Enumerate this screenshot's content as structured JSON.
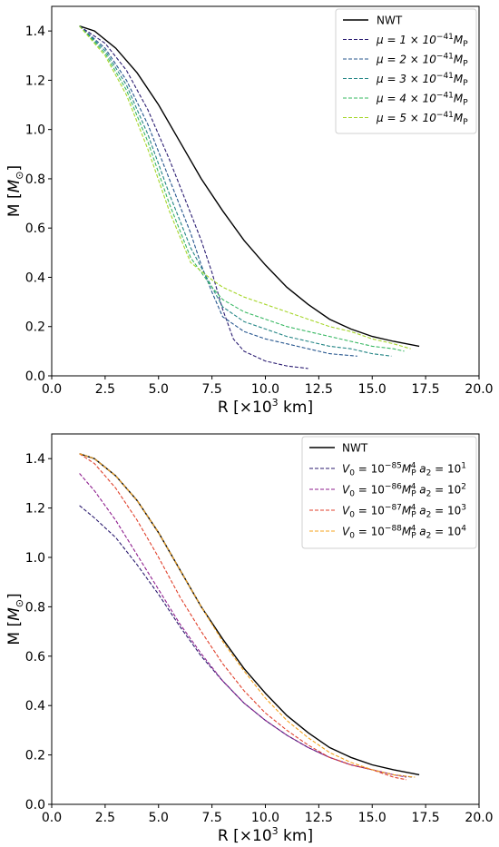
{
  "chart_data": [
    {
      "type": "line",
      "xlabel": "R [×10³ km]",
      "ylabel": "M [M☉]",
      "xlim": [
        0,
        20
      ],
      "ylim": [
        0,
        1.5
      ],
      "xticks": [
        "0.0",
        "2.5",
        "5.0",
        "7.5",
        "10.0",
        "12.5",
        "15.0",
        "17.5",
        "20.0"
      ],
      "yticks": [
        "0.0",
        "0.2",
        "0.4",
        "0.6",
        "0.8",
        "1.0",
        "1.2",
        "1.4"
      ],
      "legend_position": "top-right",
      "grid": false,
      "series": [
        {
          "name": "NWT",
          "style": "solid",
          "color": "#000000",
          "x": [
            1.3,
            2.0,
            3.0,
            4.0,
            5.0,
            6.0,
            7.0,
            8.0,
            9.0,
            10.0,
            11.0,
            12.0,
            13.0,
            14.0,
            15.0,
            16.0,
            17.2
          ],
          "y": [
            1.42,
            1.4,
            1.33,
            1.23,
            1.1,
            0.95,
            0.8,
            0.67,
            0.55,
            0.45,
            0.36,
            0.29,
            0.23,
            0.19,
            0.16,
            0.14,
            0.12
          ]
        },
        {
          "name_parts": [
            "μ = 1 × 10",
            "−41",
            "M",
            "P"
          ],
          "style": "dashed",
          "color": "#2b1d72",
          "x": [
            1.3,
            2.5,
            3.5,
            4.5,
            5.5,
            6.5,
            7.0,
            7.5,
            8.0,
            8.5,
            9.0,
            10.0,
            11.0,
            12.0
          ],
          "y": [
            1.42,
            1.35,
            1.24,
            1.08,
            0.88,
            0.66,
            0.55,
            0.42,
            0.27,
            0.15,
            0.1,
            0.06,
            0.04,
            0.03
          ]
        },
        {
          "name_parts": [
            "μ = 2 × 10",
            "−41",
            "M",
            "P"
          ],
          "style": "dashed",
          "color": "#25558e",
          "x": [
            1.3,
            2.5,
            3.5,
            4.5,
            5.5,
            6.5,
            7.0,
            7.5,
            8.0,
            9.0,
            10.0,
            11.0,
            12.0,
            13.0,
            14.3
          ],
          "y": [
            1.42,
            1.33,
            1.2,
            1.02,
            0.8,
            0.58,
            0.45,
            0.34,
            0.24,
            0.18,
            0.15,
            0.13,
            0.11,
            0.09,
            0.08
          ]
        },
        {
          "name_parts": [
            "μ = 3 × 10",
            "−41",
            "M",
            "P"
          ],
          "style": "dashed",
          "color": "#238585",
          "x": [
            1.3,
            2.5,
            3.5,
            4.5,
            5.5,
            6.5,
            7.5,
            8.0,
            9.0,
            10.0,
            11.0,
            12.0,
            13.0,
            14.0,
            15.0,
            15.9
          ],
          "y": [
            1.42,
            1.32,
            1.18,
            0.98,
            0.74,
            0.52,
            0.36,
            0.28,
            0.22,
            0.19,
            0.16,
            0.14,
            0.12,
            0.11,
            0.09,
            0.08
          ]
        },
        {
          "name_parts": [
            "μ = 4 × 10",
            "−41",
            "M",
            "P"
          ],
          "style": "dashed",
          "color": "#37b862",
          "x": [
            1.3,
            2.5,
            3.5,
            4.5,
            5.5,
            6.5,
            7.5,
            8.0,
            9.0,
            10.0,
            11.0,
            12.0,
            13.0,
            14.0,
            15.0,
            16.0,
            16.5
          ],
          "y": [
            1.42,
            1.31,
            1.16,
            0.95,
            0.7,
            0.48,
            0.36,
            0.31,
            0.26,
            0.23,
            0.2,
            0.18,
            0.16,
            0.14,
            0.12,
            0.11,
            0.1
          ]
        },
        {
          "name_parts": [
            "μ = 5 × 10",
            "−41",
            "M",
            "P"
          ],
          "style": "dashed",
          "color": "#a6d62a",
          "x": [
            1.3,
            2.5,
            3.5,
            4.5,
            5.5,
            6.5,
            7.5,
            8.0,
            9.0,
            10.0,
            11.0,
            12.0,
            13.0,
            14.0,
            15.0,
            16.0,
            16.8
          ],
          "y": [
            1.42,
            1.3,
            1.14,
            0.92,
            0.67,
            0.46,
            0.39,
            0.36,
            0.32,
            0.29,
            0.26,
            0.23,
            0.2,
            0.18,
            0.15,
            0.13,
            0.11
          ]
        }
      ]
    },
    {
      "type": "line",
      "xlabel": "R [×10³ km]",
      "ylabel": "M [M☉]",
      "xlim": [
        0,
        20
      ],
      "ylim": [
        0,
        1.5
      ],
      "xticks": [
        "0.0",
        "2.5",
        "5.0",
        "7.5",
        "10.0",
        "12.5",
        "15.0",
        "17.5",
        "20.0"
      ],
      "yticks": [
        "0.0",
        "0.2",
        "0.4",
        "0.6",
        "0.8",
        "1.0",
        "1.2",
        "1.4"
      ],
      "legend_position": "top-right",
      "grid": false,
      "series": [
        {
          "name": "NWT",
          "style": "solid",
          "color": "#000000",
          "x": [
            1.3,
            2.0,
            3.0,
            4.0,
            5.0,
            6.0,
            7.0,
            8.0,
            9.0,
            10.0,
            11.0,
            12.0,
            13.0,
            14.0,
            15.0,
            16.0,
            17.2
          ],
          "y": [
            1.42,
            1.4,
            1.33,
            1.23,
            1.1,
            0.95,
            0.8,
            0.67,
            0.55,
            0.45,
            0.36,
            0.29,
            0.23,
            0.19,
            0.16,
            0.14,
            0.12
          ]
        },
        {
          "name_parts": [
            "V",
            "0",
            " = 10",
            "−85",
            "M",
            "P",
            "4",
            " a",
            "2",
            " = 10",
            "1"
          ],
          "style": "dashed",
          "color": "#2a1a6e",
          "x": [
            1.3,
            2.0,
            3.0,
            4.0,
            5.0,
            6.0,
            7.0,
            8.0,
            9.0,
            10.0,
            11.0,
            12.0,
            13.0,
            14.0,
            15.0,
            16.0,
            16.9
          ],
          "y": [
            1.21,
            1.16,
            1.08,
            0.97,
            0.85,
            0.72,
            0.6,
            0.5,
            0.41,
            0.34,
            0.28,
            0.23,
            0.19,
            0.16,
            0.14,
            0.12,
            0.11
          ]
        },
        {
          "name_parts": [
            "V",
            "0",
            " = 10",
            "−86",
            "M",
            "P",
            "4",
            " a",
            "2",
            " = 10",
            "2"
          ],
          "style": "dashed",
          "color": "#8e1e8e",
          "x": [
            1.3,
            2.0,
            3.0,
            4.0,
            5.0,
            6.0,
            7.0,
            8.0,
            9.0,
            10.0,
            11.0,
            12.0,
            13.0,
            14.0,
            15.0,
            16.0,
            16.6
          ],
          "y": [
            1.34,
            1.27,
            1.15,
            1.01,
            0.87,
            0.73,
            0.61,
            0.5,
            0.41,
            0.34,
            0.28,
            0.23,
            0.19,
            0.16,
            0.14,
            0.12,
            0.11
          ]
        },
        {
          "name_parts": [
            "V",
            "0",
            " = 10",
            "−87",
            "M",
            "P",
            "4",
            " a",
            "2",
            " = 10",
            "3"
          ],
          "style": "dashed",
          "color": "#e0412c",
          "x": [
            1.3,
            2.0,
            3.0,
            4.0,
            5.0,
            6.0,
            7.0,
            8.0,
            9.0,
            10.0,
            11.0,
            12.0,
            13.0,
            14.0,
            15.0,
            16.0,
            16.6
          ],
          "y": [
            1.42,
            1.38,
            1.28,
            1.15,
            1.0,
            0.84,
            0.7,
            0.57,
            0.46,
            0.37,
            0.3,
            0.24,
            0.19,
            0.16,
            0.14,
            0.11,
            0.1
          ]
        },
        {
          "name_parts": [
            "V",
            "0",
            " = 10",
            "−88",
            "M",
            "P",
            "4",
            " a",
            "2",
            " = 10",
            "4"
          ],
          "style": "dashed",
          "color": "#f5a31c",
          "x": [
            1.3,
            2.0,
            3.0,
            4.0,
            5.0,
            6.0,
            7.0,
            8.0,
            9.0,
            10.0,
            11.0,
            12.0,
            13.0,
            14.0,
            15.0,
            16.0,
            17.0
          ],
          "y": [
            1.42,
            1.4,
            1.33,
            1.23,
            1.1,
            0.95,
            0.8,
            0.66,
            0.54,
            0.43,
            0.34,
            0.27,
            0.21,
            0.17,
            0.14,
            0.12,
            0.11
          ]
        }
      ]
    }
  ]
}
